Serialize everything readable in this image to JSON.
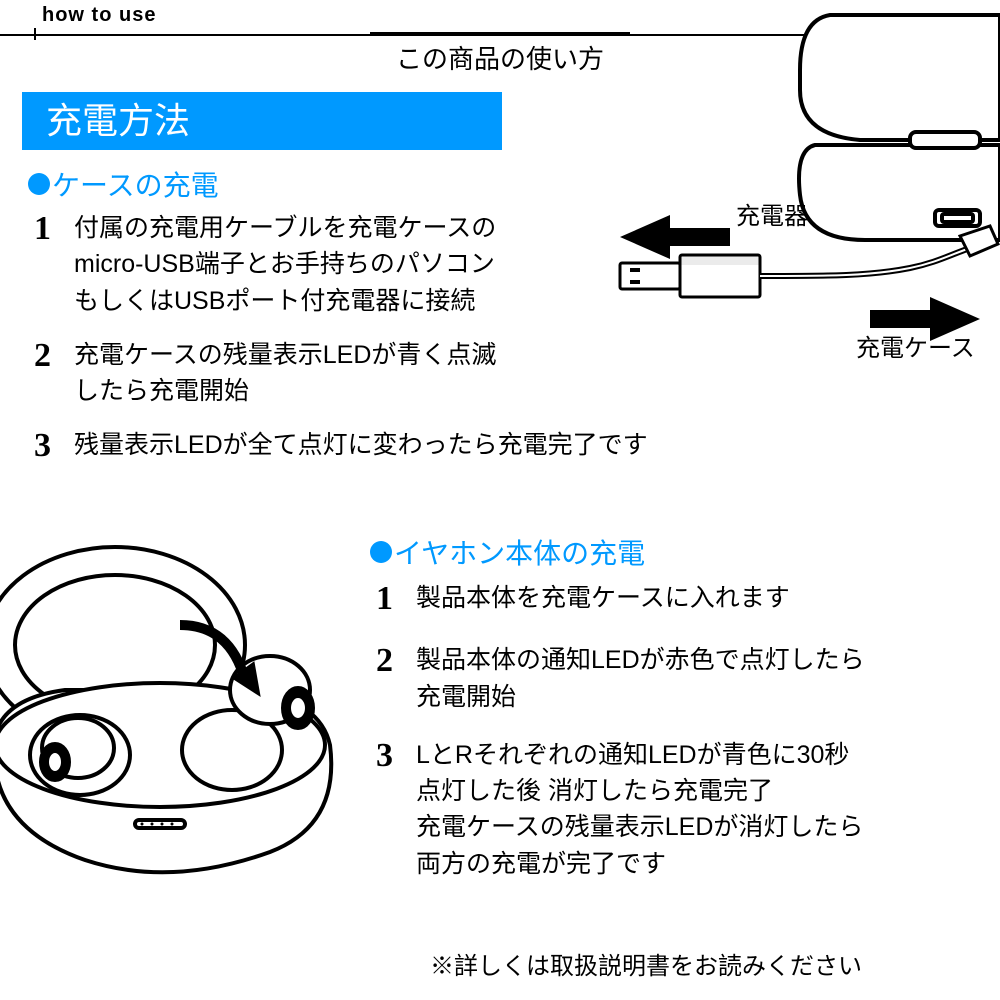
{
  "header": {
    "label": "how to use",
    "subtitle": "この商品の使い方"
  },
  "banner": "充電方法",
  "colors": {
    "accent": "#0099ff",
    "text": "#000000",
    "bg": "#ffffff"
  },
  "section1": {
    "heading": "ケースの充電",
    "steps": [
      "付属の充電用ケーブルを充電ケースの\nmicro-USB端子とお手持ちのパソコン\nもしくはUSBポート付充電器に接続",
      "充電ケースの残量表示LEDが青く点滅\nしたら充電開始",
      "残量表示LEDが全て点灯に変わったら充電完了です"
    ]
  },
  "section2": {
    "heading": "イヤホン本体の充電",
    "steps": [
      "製品本体を充電ケースに入れます",
      "製品本体の通知LEDが赤色で点灯したら\n充電開始",
      "LとRそれぞれの通知LEDが青色に30秒\n点灯した後 消灯したら充電完了\n充電ケースの残量表示LEDが消灯したら\n両方の充電が完了です"
    ]
  },
  "note": "※詳しくは取扱説明書をお読みください",
  "diagramLabels": {
    "charger": "充電器",
    "case": "充電ケース"
  },
  "diagrams": {
    "stroke": "#000000",
    "fill": "#ffffff",
    "lineWidth": 3
  }
}
